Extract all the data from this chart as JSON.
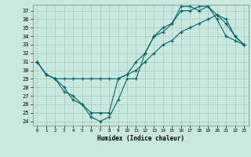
{
  "title": "",
  "xlabel": "Humidex (Indice chaleur)",
  "background_color": "#c8e8e0",
  "grid_color": "#a8c8c0",
  "line_color": "#006868",
  "xlim": [
    -0.5,
    23.5
  ],
  "ylim": [
    23.5,
    37.7
  ],
  "yticks": [
    24,
    25,
    26,
    27,
    28,
    29,
    30,
    31,
    32,
    33,
    34,
    35,
    36,
    37
  ],
  "xticks": [
    0,
    1,
    2,
    3,
    4,
    5,
    6,
    7,
    8,
    9,
    10,
    11,
    12,
    13,
    14,
    15,
    16,
    17,
    18,
    19,
    20,
    21,
    22,
    23
  ],
  "series": [
    {
      "x": [
        0,
        1,
        2,
        3,
        4,
        5,
        6,
        7,
        8,
        9,
        10,
        11,
        12,
        13,
        14,
        15,
        16,
        17,
        18,
        19,
        20,
        21,
        22,
        23
      ],
      "y": [
        31,
        29.5,
        29,
        28,
        26.5,
        26,
        24.5,
        24,
        24.5,
        26.5,
        29,
        29,
        32,
        34,
        34.5,
        35.5,
        37.5,
        37.5,
        37,
        37.5,
        36.5,
        35.5,
        34,
        33
      ]
    },
    {
      "x": [
        0,
        1,
        2,
        3,
        4,
        5,
        6,
        7,
        8,
        9,
        10,
        11,
        12,
        13,
        14,
        15,
        16,
        17,
        18,
        19,
        20,
        21,
        22,
        23
      ],
      "y": [
        31,
        29.5,
        29,
        27.5,
        27,
        26,
        25,
        25,
        25,
        29,
        29.5,
        31,
        32,
        34,
        35,
        35.5,
        37,
        37,
        37.5,
        37.5,
        36,
        34,
        33.5,
        33
      ]
    },
    {
      "x": [
        0,
        1,
        2,
        3,
        4,
        5,
        6,
        7,
        8,
        9,
        10,
        11,
        12,
        13,
        14,
        15,
        16,
        17,
        18,
        19,
        20,
        21,
        22,
        23
      ],
      "y": [
        31,
        29.5,
        29,
        29,
        29,
        29,
        29,
        29,
        29,
        29,
        29.5,
        30,
        31,
        32,
        33,
        33.5,
        34.5,
        35,
        35.5,
        36,
        36.5,
        36,
        34,
        33
      ]
    }
  ]
}
